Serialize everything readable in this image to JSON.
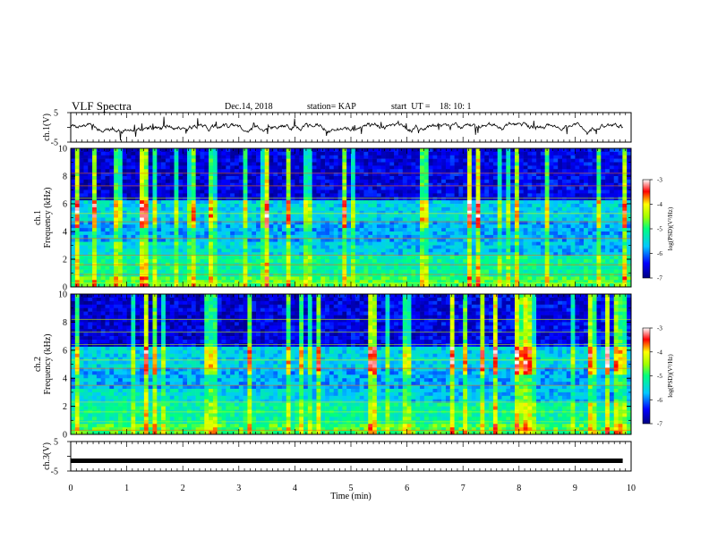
{
  "header": {
    "title": "VLF Spectra",
    "date": "Dec.14, 2018",
    "station": "station= KAP",
    "start_label": "start  UT =",
    "start_time": "18: 10: 1"
  },
  "chart_data": [
    {
      "type": "line",
      "panel": "ch1-waveform",
      "ylabel": "ch.1(V)",
      "ylim": [
        -5,
        5
      ],
      "yticks": [
        "5",
        "-5"
      ],
      "xlim": [
        0,
        10
      ],
      "note_values": "noisy waveform fluctuating roughly between -3 and 3 V"
    },
    {
      "type": "heatmap",
      "panel": "ch1-spectrogram",
      "ylabel_line1": "ch.1",
      "ylabel_line2": "Frequency  (kHz)",
      "ylim": [
        0,
        10
      ],
      "yticks": [
        "0",
        "2",
        "4",
        "6",
        "8",
        "10"
      ],
      "xlim": [
        0,
        10
      ],
      "colorbar": {
        "label": "log(PSD)(V²/Hz)",
        "range": [
          -7,
          -3
        ],
        "ticks": [
          "-3",
          "-4",
          "-5",
          "-6",
          "-7"
        ]
      }
    },
    {
      "type": "heatmap",
      "panel": "ch2-spectrogram",
      "ylabel_line1": "ch.2",
      "ylabel_line2": "Frequency  (kHz)",
      "ylim": [
        0,
        10
      ],
      "yticks": [
        "0",
        "2",
        "4",
        "6",
        "8",
        "10"
      ],
      "xlim": [
        0,
        10
      ],
      "colorbar": {
        "label": "log(PSD)(V²/Hz)",
        "range": [
          -7,
          -3
        ],
        "ticks": [
          "-3",
          "-4",
          "-5",
          "-6",
          "-7"
        ]
      }
    },
    {
      "type": "line",
      "panel": "ch3-waveform",
      "ylabel": "ch.3(V)",
      "ylim": [
        -5,
        5
      ],
      "yticks": [
        "5",
        "-5"
      ],
      "xlim": [
        0,
        10
      ],
      "values_constant": -1.5
    }
  ],
  "xaxis": {
    "label": "Time  (min)",
    "ticks": [
      "0",
      "1",
      "2",
      "3",
      "4",
      "5",
      "6",
      "7",
      "8",
      "9",
      "10"
    ],
    "range": [
      0,
      10
    ]
  }
}
